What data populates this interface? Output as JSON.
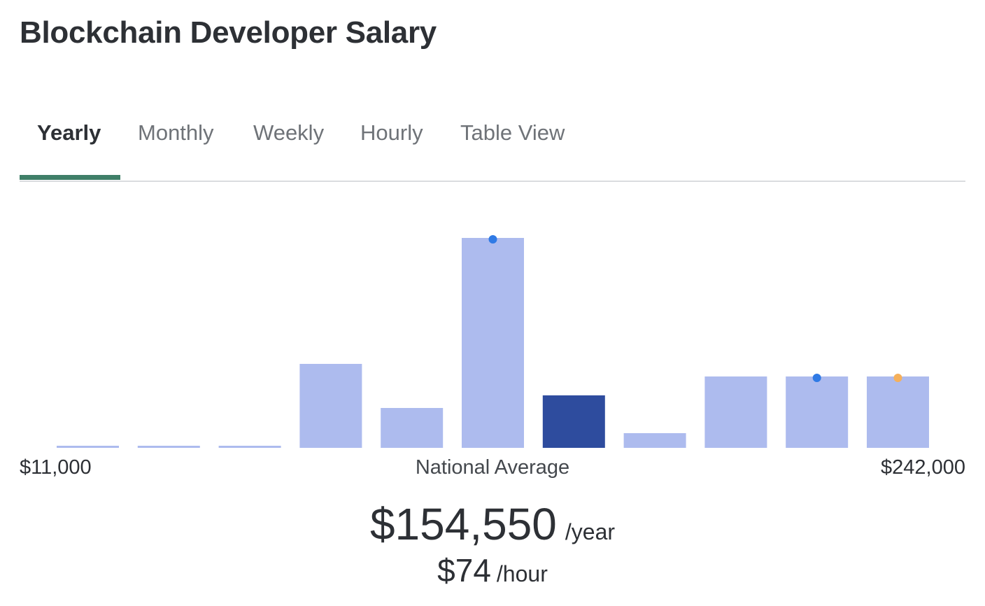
{
  "page": {
    "title": "Blockchain Developer Salary"
  },
  "tabs": [
    {
      "label": "Yearly",
      "active": true
    },
    {
      "label": "Monthly",
      "active": false
    },
    {
      "label": "Weekly",
      "active": false
    },
    {
      "label": "Hourly",
      "active": false
    },
    {
      "label": "Table View",
      "active": false
    }
  ],
  "colors": {
    "accent": "#3f7f68",
    "bar": "#adbbee",
    "bar_highlight": "#2e4c9e",
    "marker_blue": "#2f7ae5",
    "marker_orange": "#f5b05b"
  },
  "chart_data": {
    "type": "bar",
    "title": "",
    "xlabel": "",
    "ylabel": "",
    "range_min_label": "$11,000",
    "range_max_label": "$242,000",
    "average_label": "National Average",
    "highlight_index": 6,
    "values": [
      1,
      1,
      1,
      40,
      19,
      100,
      25,
      7,
      34,
      34,
      34
    ],
    "ylim": [
      0,
      100
    ],
    "markers": [
      {
        "bar_index": 5,
        "color": "blue"
      },
      {
        "bar_index": 9,
        "color": "blue"
      },
      {
        "bar_index": 10,
        "color": "orange"
      }
    ]
  },
  "salary": {
    "yearly_amount": "$154,550",
    "yearly_unit": "/year",
    "hourly_amount": "$74",
    "hourly_unit": "/hour"
  }
}
